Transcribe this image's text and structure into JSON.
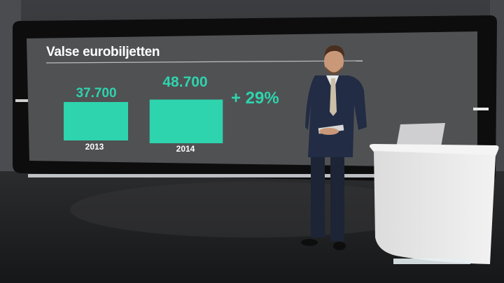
{
  "screen": {
    "title": "Valse eurobiljetten",
    "accent_color": "#2ed4ae",
    "change_label": "+ 29%"
  },
  "chart_data": {
    "type": "bar",
    "categories": [
      "2013",
      "2014"
    ],
    "values": [
      37700,
      48700
    ],
    "value_labels": [
      "37.700",
      "48.700"
    ],
    "title": "Valse eurobiljetten",
    "grid": false
  },
  "studio": {
    "presenter": "news-presenter",
    "props": [
      "studio-desk",
      "laptop"
    ]
  }
}
